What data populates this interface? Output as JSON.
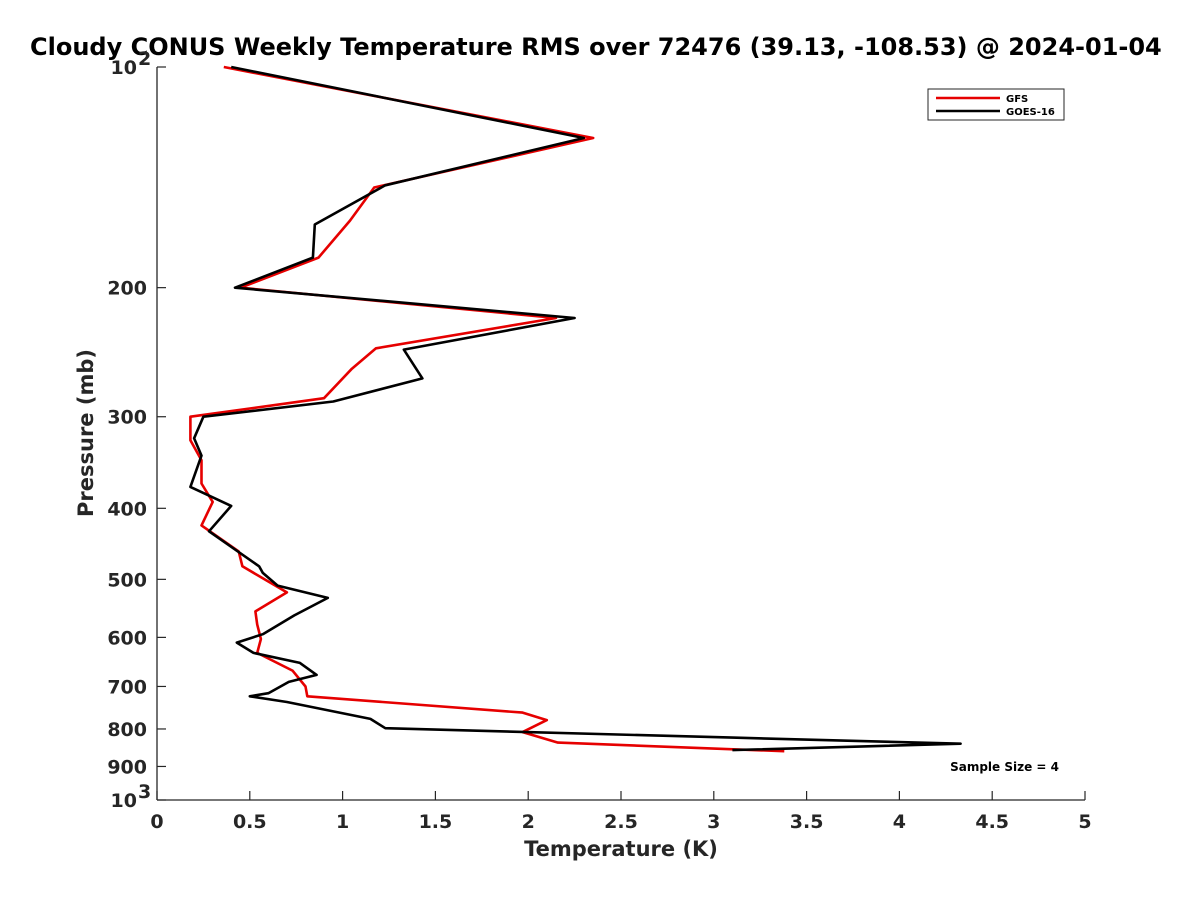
{
  "chart_data": {
    "type": "line",
    "title": "Cloudy CONUS Weekly Temperature RMS over 72476 (39.13, -108.53) @ 2024-01-04",
    "xlabel": "Temperature (K)",
    "ylabel": "Pressure (mb)",
    "xlim": [
      0,
      5
    ],
    "ylim": [
      100,
      1000
    ],
    "y_scale": "log",
    "y_reversed": true,
    "grid": false,
    "legend_position": "top-right",
    "x_ticks": [
      0,
      0.5,
      1,
      1.5,
      2,
      2.5,
      3,
      3.5,
      4,
      4.5,
      5
    ],
    "x_tick_labels": [
      "0",
      "0.5",
      "1",
      "1.5",
      "2",
      "2.5",
      "3",
      "3.5",
      "4",
      "4.5",
      "5"
    ],
    "y_ticks": [
      {
        "value": 100,
        "label": "10",
        "sup": "2"
      },
      {
        "value": 200,
        "label": "200",
        "sup": ""
      },
      {
        "value": 300,
        "label": "300",
        "sup": ""
      },
      {
        "value": 400,
        "label": "400",
        "sup": ""
      },
      {
        "value": 500,
        "label": "500",
        "sup": ""
      },
      {
        "value": 600,
        "label": "600",
        "sup": ""
      },
      {
        "value": 700,
        "label": "700",
        "sup": ""
      },
      {
        "value": 800,
        "label": "800",
        "sup": ""
      },
      {
        "value": 900,
        "label": "900",
        "sup": ""
      },
      {
        "value": 1000,
        "label": "10",
        "sup": "3"
      }
    ],
    "annotation": "Sample Size = 4",
    "series": [
      {
        "name": "GFS",
        "color": "#e60000",
        "points": [
          [
            0.36,
            100
          ],
          [
            2.35,
            125
          ],
          [
            1.17,
            146
          ],
          [
            1.04,
            162
          ],
          [
            0.87,
            182
          ],
          [
            0.45,
            200
          ],
          [
            2.15,
            220
          ],
          [
            1.18,
            242
          ],
          [
            1.05,
            258
          ],
          [
            0.9,
            283
          ],
          [
            0.18,
            300
          ],
          [
            0.18,
            323
          ],
          [
            0.24,
            344
          ],
          [
            0.24,
            370
          ],
          [
            0.3,
            392
          ],
          [
            0.24,
            422
          ],
          [
            0.44,
            458
          ],
          [
            0.46,
            480
          ],
          [
            0.7,
            521
          ],
          [
            0.53,
            553
          ],
          [
            0.54,
            576
          ],
          [
            0.56,
            603
          ],
          [
            0.54,
            630
          ],
          [
            0.73,
            666
          ],
          [
            0.8,
            700
          ],
          [
            0.81,
            722
          ],
          [
            1.97,
            760
          ],
          [
            2.1,
            778
          ],
          [
            1.97,
            808
          ],
          [
            2.16,
            835
          ],
          [
            3.38,
            858
          ]
        ]
      },
      {
        "name": "GOES-16",
        "color": "#000000",
        "points": [
          [
            0.4,
            100
          ],
          [
            2.3,
            125
          ],
          [
            1.23,
            145
          ],
          [
            0.85,
            164
          ],
          [
            0.84,
            182
          ],
          [
            0.42,
            200
          ],
          [
            2.25,
            220
          ],
          [
            1.33,
            243
          ],
          [
            1.43,
            266
          ],
          [
            0.95,
            286
          ],
          [
            0.25,
            300
          ],
          [
            0.2,
            321
          ],
          [
            0.24,
            339
          ],
          [
            0.18,
            374
          ],
          [
            0.4,
            397
          ],
          [
            0.28,
            430
          ],
          [
            0.55,
            480
          ],
          [
            0.57,
            490
          ],
          [
            0.65,
            510
          ],
          [
            0.92,
            530
          ],
          [
            0.74,
            560
          ],
          [
            0.57,
            594
          ],
          [
            0.43,
            610
          ],
          [
            0.52,
            630
          ],
          [
            0.77,
            650
          ],
          [
            0.86,
            675
          ],
          [
            0.71,
            690
          ],
          [
            0.6,
            715
          ],
          [
            0.5,
            722
          ],
          [
            0.7,
            735
          ],
          [
            1.15,
            775
          ],
          [
            1.23,
            798
          ],
          [
            3.1,
            822
          ],
          [
            4.33,
            838
          ],
          [
            3.1,
            855
          ]
        ]
      }
    ]
  }
}
